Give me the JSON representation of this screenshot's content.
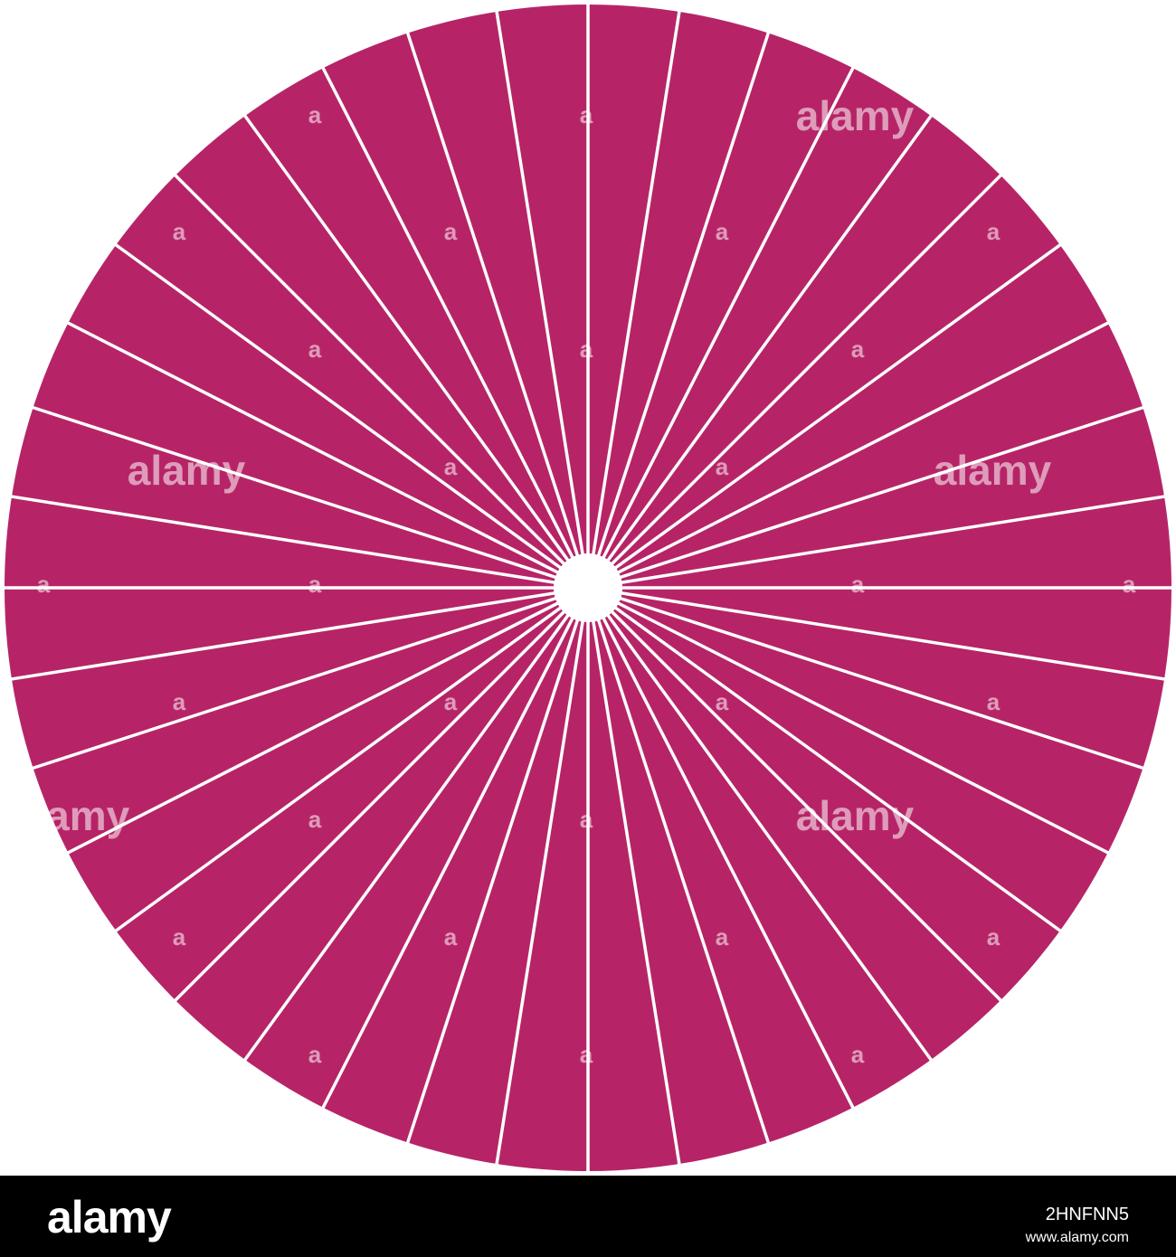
{
  "artwork": {
    "description_name": "radial-sunburst-disc",
    "fill_color": "#b62467",
    "ray_color": "#ffffff",
    "center_color": "#ffffff",
    "segment_count": 40
  },
  "watermark": {
    "text": "alamy",
    "small_mark": "a"
  },
  "footer": {
    "logo_text": "alamy",
    "image_id": "2HNFNN5",
    "url": "www.alamy.com"
  }
}
